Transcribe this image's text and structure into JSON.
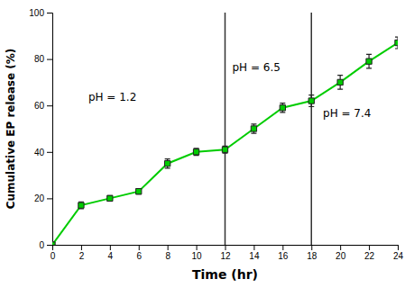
{
  "chart_data": {
    "type": "line",
    "x": [
      0,
      2,
      4,
      6,
      8,
      10,
      12,
      14,
      16,
      18,
      20,
      22,
      24
    ],
    "values": [
      0,
      17,
      20,
      23,
      35,
      40,
      41,
      50,
      59,
      62,
      70,
      79,
      87
    ],
    "yerr": [
      0,
      1.5,
      1.2,
      1.2,
      2.0,
      1.5,
      1.5,
      2.0,
      2.0,
      2.5,
      3.0,
      3.0,
      2.5
    ],
    "color": "#00CC00",
    "marker": "square",
    "line_style": "solid",
    "vlines": [
      12,
      18
    ],
    "annotations": [
      {
        "text": "pH = 1.2",
        "x": 2.5,
        "y": 62
      },
      {
        "text": "pH = 6.5",
        "x": 12.5,
        "y": 75
      },
      {
        "text": "pH = 7.4",
        "x": 18.8,
        "y": 55
      }
    ],
    "xlabel": "Time (hr)",
    "ylabel": "Cumulative EP release (%)",
    "xlim": [
      0,
      24
    ],
    "ylim": [
      0,
      100
    ],
    "xticks": [
      0,
      2,
      4,
      6,
      8,
      10,
      12,
      14,
      16,
      18,
      20,
      22,
      24
    ],
    "yticks": [
      0,
      20,
      40,
      60,
      80,
      100
    ]
  }
}
